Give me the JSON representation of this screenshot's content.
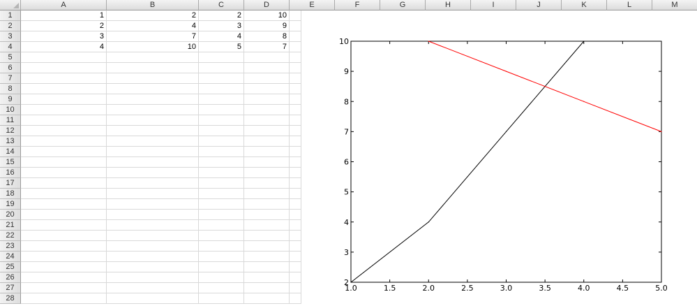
{
  "columns": [
    "A",
    "B",
    "C",
    "D",
    "E",
    "F",
    "G",
    "H",
    "I",
    "J",
    "K",
    "L",
    "M"
  ],
  "rows": [
    "1",
    "2",
    "3",
    "4",
    "5",
    "6",
    "7",
    "8",
    "9",
    "10",
    "11",
    "12",
    "13",
    "14",
    "15",
    "16",
    "17",
    "18",
    "19",
    "20",
    "21",
    "22",
    "23",
    "24",
    "25",
    "26",
    "27",
    "28"
  ],
  "cells": [
    [
      "1",
      "2",
      "2",
      "10"
    ],
    [
      "2",
      "4",
      "3",
      "9"
    ],
    [
      "3",
      "7",
      "4",
      "8"
    ],
    [
      "4",
      "10",
      "5",
      "7"
    ]
  ],
  "chart_data": {
    "type": "line",
    "title": "",
    "xlabel": "",
    "ylabel": "",
    "xlim": [
      1.0,
      5.0
    ],
    "ylim": [
      2,
      10
    ],
    "xticks": [
      "1.0",
      "1.5",
      "2.0",
      "2.5",
      "3.0",
      "3.5",
      "4.0",
      "4.5",
      "5.0"
    ],
    "yticks": [
      "2",
      "3",
      "4",
      "5",
      "6",
      "7",
      "8",
      "9",
      "10"
    ],
    "grid": false,
    "series": [
      {
        "x": [
          1,
          2,
          3,
          4
        ],
        "y": [
          2,
          4,
          7,
          10
        ],
        "color": "#000000"
      },
      {
        "x": [
          2,
          3,
          4,
          5
        ],
        "y": [
          10,
          9,
          8,
          7
        ],
        "color": "#ff0000"
      }
    ]
  }
}
